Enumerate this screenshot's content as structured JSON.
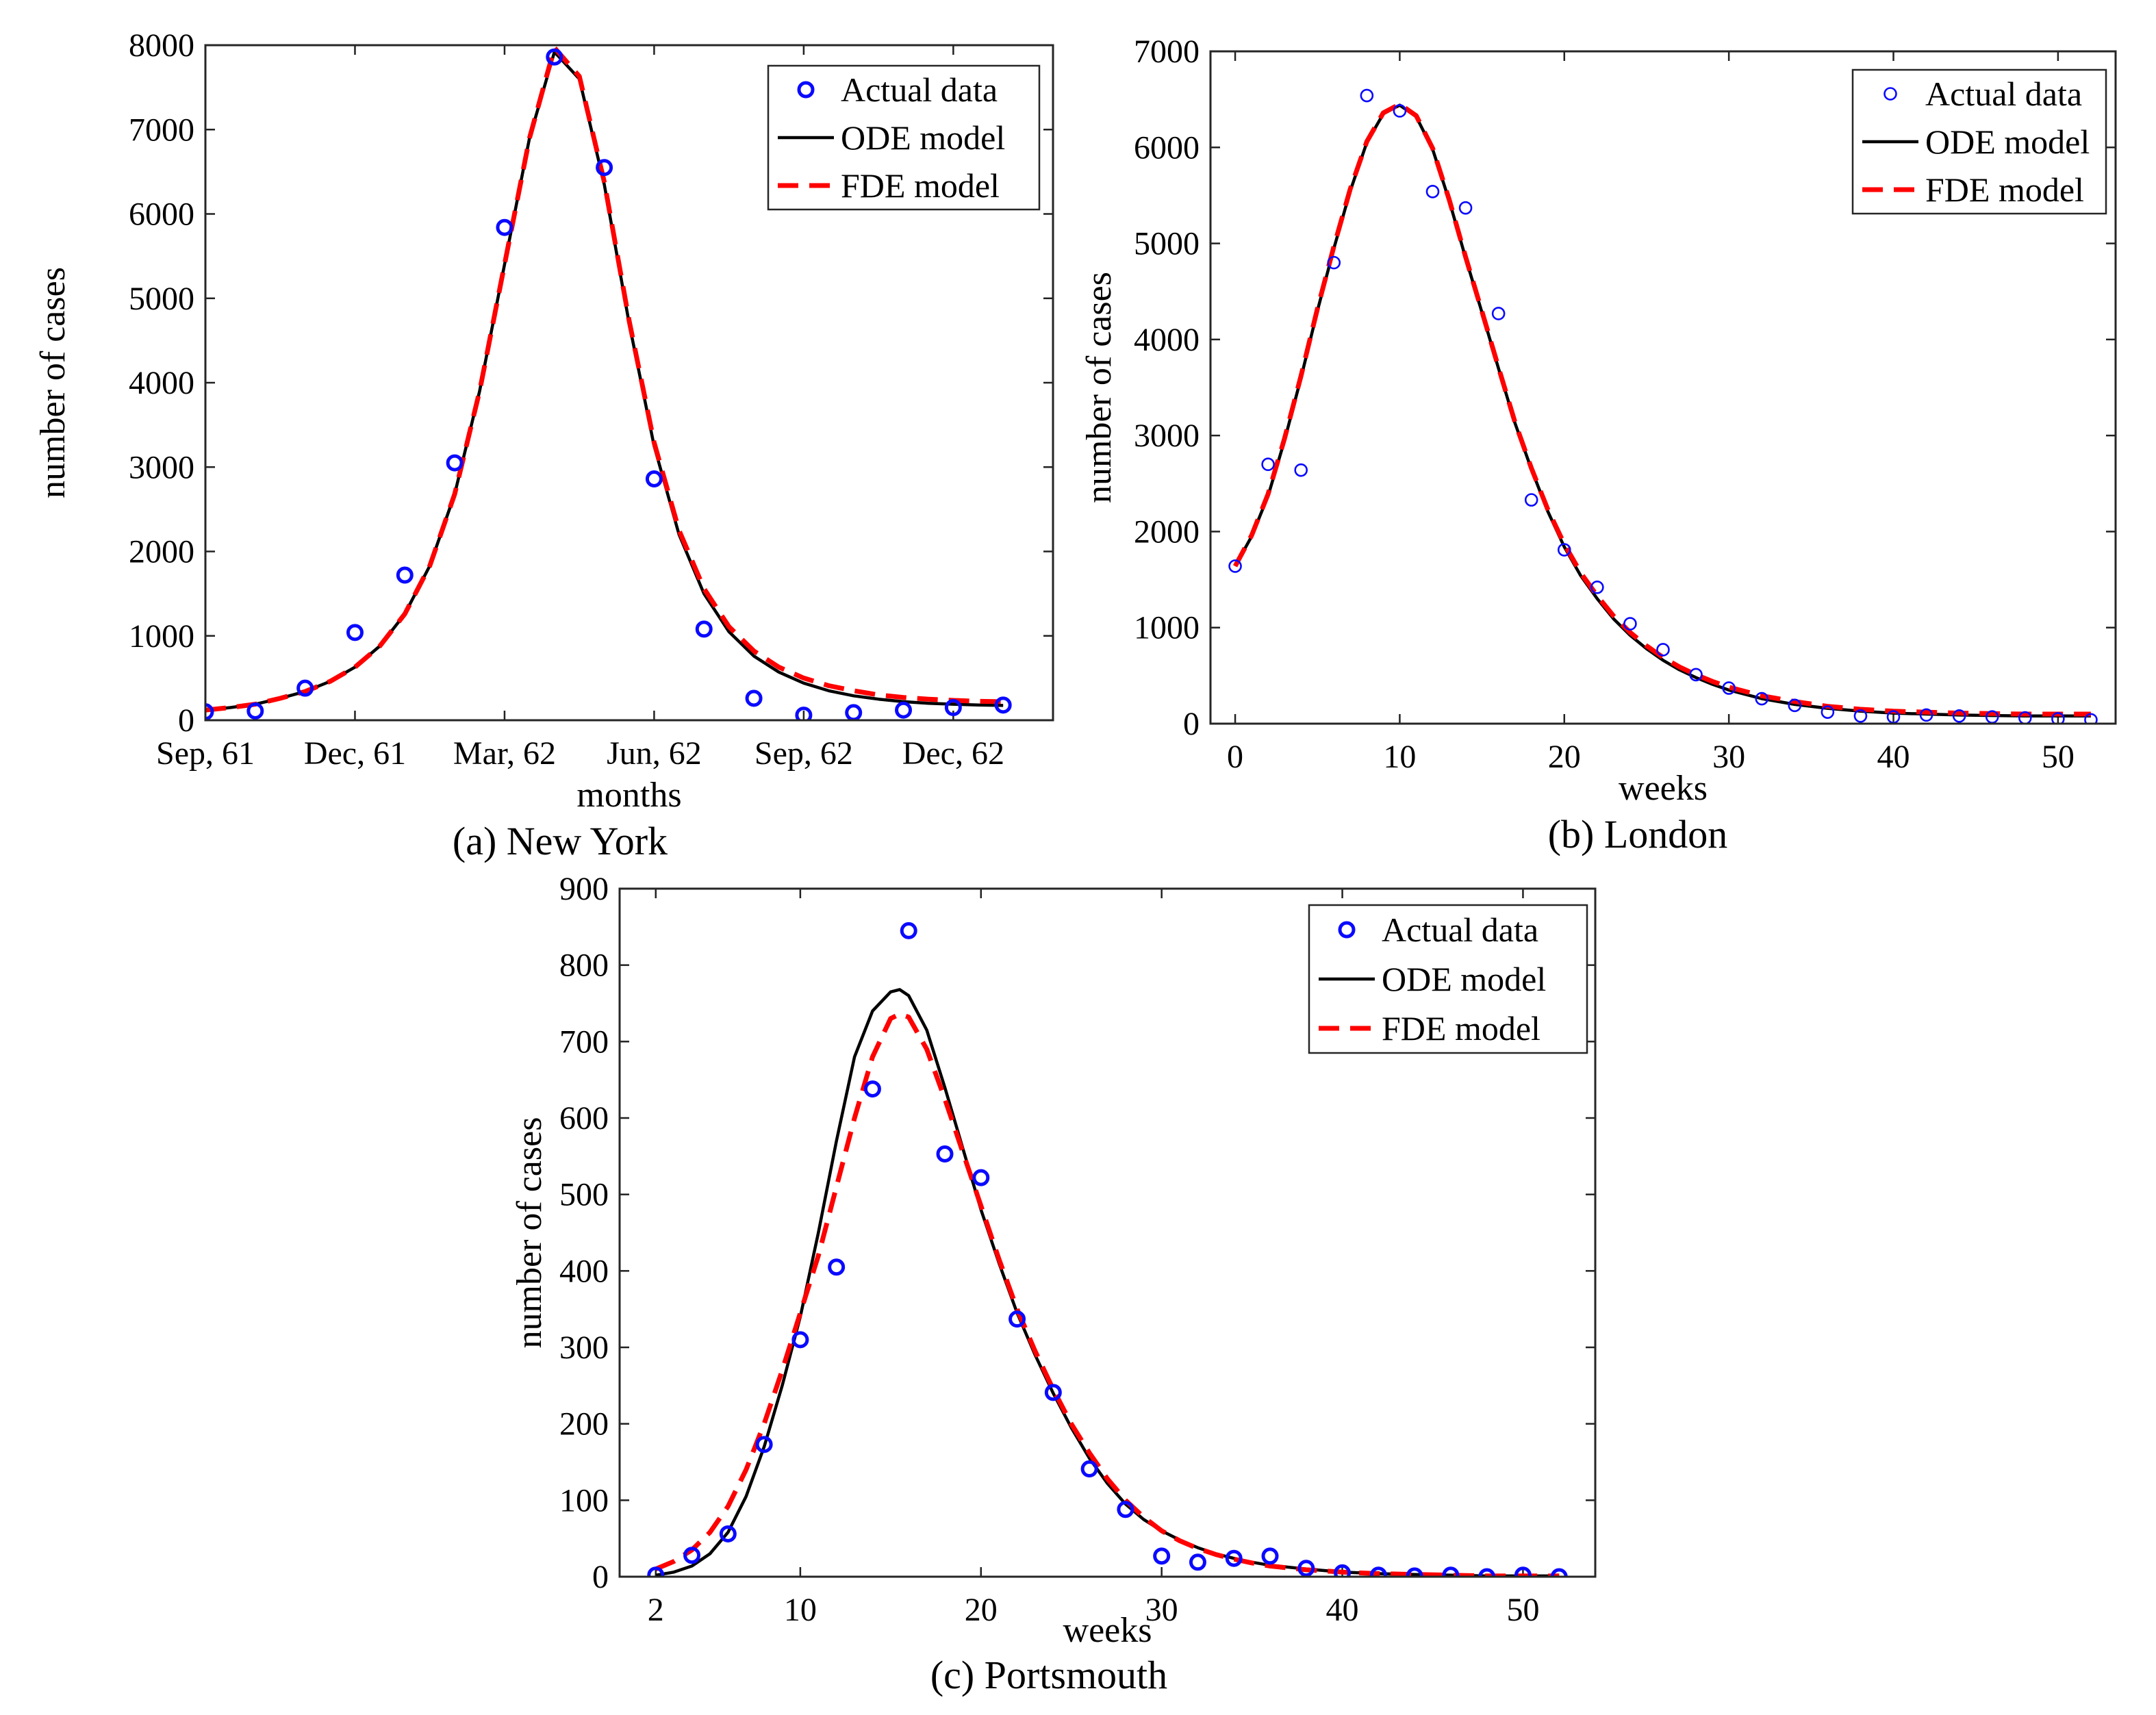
{
  "chart_data": [
    {
      "type": "line",
      "panel": "a",
      "caption": "(a) New York",
      "xlabel": "months",
      "ylabel": "number of cases",
      "xlim": [
        0,
        17
      ],
      "ylim": [
        0,
        8000
      ],
      "xticks": [
        {
          "v": 0,
          "label": "Sep, 61"
        },
        {
          "v": 3,
          "label": "Dec, 61"
        },
        {
          "v": 6,
          "label": "Mar, 62"
        },
        {
          "v": 9,
          "label": "Jun, 62"
        },
        {
          "v": 12,
          "label": "Sep, 62"
        },
        {
          "v": 15,
          "label": "Dec, 62"
        }
      ],
      "yticks": [
        0,
        1000,
        2000,
        3000,
        4000,
        5000,
        6000,
        7000,
        8000
      ],
      "legend": {
        "position": "top-right",
        "entries": [
          "Actual data",
          "ODE model",
          "FDE model"
        ]
      },
      "series": [
        {
          "name": "Actual data",
          "kind": "markers",
          "marker_size": "large",
          "x": [
            0,
            1,
            2,
            3,
            4,
            5,
            6,
            7,
            8,
            9,
            10,
            11,
            12,
            13,
            14,
            15,
            16
          ],
          "y": [
            100,
            110,
            380,
            1040,
            1720,
            3050,
            5840,
            7860,
            6550,
            2860,
            1080,
            260,
            60,
            90,
            120,
            150,
            180
          ]
        },
        {
          "name": "ODE model",
          "kind": "solid",
          "x": [
            0,
            0.5,
            1,
            1.5,
            2,
            2.5,
            3,
            3.5,
            4,
            4.5,
            5,
            5.5,
            6,
            6.5,
            7,
            7.5,
            8,
            8.5,
            9,
            9.5,
            10,
            10.5,
            11,
            11.5,
            12,
            12.5,
            13,
            13.5,
            14,
            14.5,
            15,
            15.5,
            16
          ],
          "y": [
            120,
            150,
            190,
            260,
            340,
            460,
            630,
            880,
            1260,
            1830,
            2680,
            3900,
            5400,
            6900,
            7920,
            7600,
            6350,
            4700,
            3250,
            2200,
            1500,
            1050,
            760,
            570,
            440,
            350,
            290,
            250,
            220,
            200,
            190,
            180,
            175
          ]
        },
        {
          "name": "FDE model",
          "kind": "dashed",
          "x": [
            0,
            0.5,
            1,
            1.5,
            2,
            2.5,
            3,
            3.5,
            4,
            4.5,
            5,
            5.5,
            6,
            6.5,
            7,
            7.5,
            8,
            8.5,
            9,
            9.5,
            10,
            10.5,
            11,
            11.5,
            12,
            12.5,
            13,
            13.5,
            14,
            14.5,
            15,
            15.5,
            16
          ],
          "y": [
            120,
            150,
            190,
            260,
            340,
            460,
            630,
            880,
            1260,
            1830,
            2680,
            3900,
            5400,
            6900,
            7970,
            7630,
            6380,
            4730,
            3290,
            2250,
            1560,
            1110,
            820,
            630,
            500,
            410,
            350,
            300,
            270,
            250,
            235,
            225,
            220
          ]
        }
      ]
    },
    {
      "type": "line",
      "panel": "b",
      "caption": "(b) London",
      "xlabel": "weeks",
      "ylabel": "number of cases",
      "xlim": [
        -1.5,
        53.5
      ],
      "ylim": [
        0,
        7000
      ],
      "xticks": [
        {
          "v": 0,
          "label": "0"
        },
        {
          "v": 10,
          "label": "10"
        },
        {
          "v": 20,
          "label": "20"
        },
        {
          "v": 30,
          "label": "30"
        },
        {
          "v": 40,
          "label": "40"
        },
        {
          "v": 50,
          "label": "50"
        }
      ],
      "yticks": [
        0,
        1000,
        2000,
        3000,
        4000,
        5000,
        6000,
        7000
      ],
      "legend": {
        "position": "top-right",
        "entries": [
          "Actual data",
          "ODE model",
          "FDE model"
        ]
      },
      "series": [
        {
          "name": "Actual data",
          "kind": "markers",
          "marker_size": "small",
          "x": [
            0,
            2,
            4,
            6,
            8,
            10,
            12,
            14,
            16,
            18,
            20,
            22,
            24,
            26,
            28,
            30,
            32,
            34,
            36,
            38,
            40,
            42,
            44,
            46,
            48,
            50,
            52
          ],
          "y": [
            1640,
            2700,
            2640,
            4800,
            6540,
            6380,
            5540,
            5370,
            4270,
            2330,
            1810,
            1420,
            1040,
            770,
            510,
            370,
            260,
            190,
            120,
            80,
            70,
            90,
            80,
            70,
            60,
            50,
            40
          ]
        },
        {
          "name": "ODE model",
          "kind": "solid",
          "x": [
            0,
            1,
            2,
            3,
            4,
            5,
            6,
            7,
            8,
            9,
            10,
            11,
            12,
            13,
            14,
            15,
            16,
            17,
            18,
            19,
            20,
            21,
            22,
            23,
            24,
            25,
            26,
            27,
            28,
            29,
            30,
            32,
            34,
            36,
            38,
            40,
            42,
            44,
            46,
            48,
            50,
            52
          ],
          "y": [
            1640,
            1950,
            2370,
            2950,
            3600,
            4300,
            4950,
            5550,
            6050,
            6350,
            6440,
            6320,
            5980,
            5450,
            4850,
            4280,
            3700,
            3130,
            2650,
            2210,
            1840,
            1540,
            1300,
            1090,
            920,
            780,
            660,
            560,
            480,
            410,
            350,
            260,
            200,
            160,
            130,
            110,
            100,
            90,
            85,
            80,
            80,
            80
          ]
        },
        {
          "name": "FDE model",
          "kind": "dashed",
          "x": [
            0,
            1,
            2,
            3,
            4,
            5,
            6,
            7,
            8,
            9,
            10,
            11,
            12,
            13,
            14,
            15,
            16,
            17,
            18,
            19,
            20,
            21,
            22,
            23,
            24,
            25,
            26,
            27,
            28,
            29,
            30,
            32,
            34,
            36,
            38,
            40,
            42,
            44,
            46,
            48,
            50,
            52
          ],
          "y": [
            1640,
            1960,
            2390,
            2970,
            3620,
            4320,
            4970,
            5570,
            6060,
            6360,
            6450,
            6330,
            5990,
            5460,
            4860,
            4290,
            3710,
            3140,
            2660,
            2230,
            1870,
            1570,
            1330,
            1120,
            950,
            810,
            690,
            590,
            510,
            440,
            380,
            290,
            230,
            180,
            150,
            130,
            120,
            110,
            105,
            100,
            100,
            100
          ]
        }
      ]
    },
    {
      "type": "line",
      "panel": "c",
      "caption": "(c) Portsmouth",
      "xlabel": "weeks",
      "ylabel": "number of cases",
      "xlim": [
        0,
        54
      ],
      "ylim": [
        0,
        900
      ],
      "xticks": [
        {
          "v": 2,
          "label": "2"
        },
        {
          "v": 10,
          "label": "10"
        },
        {
          "v": 20,
          "label": "20"
        },
        {
          "v": 30,
          "label": "30"
        },
        {
          "v": 40,
          "label": "40"
        },
        {
          "v": 50,
          "label": "50"
        }
      ],
      "yticks": [
        0,
        100,
        200,
        300,
        400,
        500,
        600,
        700,
        800,
        900
      ],
      "legend": {
        "position": "top-right",
        "entries": [
          "Actual data",
          "ODE model",
          "FDE model"
        ]
      },
      "series": [
        {
          "name": "Actual data",
          "kind": "markers",
          "marker_size": "large",
          "x": [
            2,
            4,
            6,
            8,
            10,
            12,
            14,
            16,
            18,
            20,
            22,
            24,
            26,
            28,
            30,
            32,
            34,
            36,
            38,
            40,
            42,
            44,
            46,
            48,
            50,
            52
          ],
          "y": [
            2,
            28,
            56,
            173,
            310,
            405,
            638,
            845,
            553,
            522,
            337,
            241,
            141,
            88,
            27,
            19,
            24,
            27,
            11,
            5,
            2,
            1,
            2,
            0,
            2,
            0
          ]
        },
        {
          "name": "ODE model",
          "kind": "solid",
          "x": [
            2,
            3,
            4,
            5,
            6,
            7,
            8,
            9,
            10,
            11,
            12,
            13,
            14,
            15,
            15.5,
            16,
            17,
            18,
            19,
            20,
            21,
            22,
            23,
            24,
            25,
            26,
            27,
            28,
            29,
            30,
            31,
            32,
            33,
            34,
            35,
            36,
            38,
            40,
            42,
            44,
            46,
            48,
            50,
            52
          ],
          "y": [
            2,
            6,
            14,
            30,
            58,
            105,
            170,
            250,
            340,
            450,
            570,
            680,
            740,
            765,
            768,
            760,
            715,
            640,
            560,
            480,
            410,
            345,
            290,
            240,
            195,
            155,
            122,
            95,
            75,
            60,
            48,
            38,
            30,
            24,
            19,
            15,
            10,
            6,
            4,
            3,
            2,
            1,
            1,
            1
          ]
        },
        {
          "name": "FDE model",
          "kind": "dashed",
          "x": [
            2,
            3,
            4,
            5,
            6,
            7,
            8,
            9,
            10,
            11,
            12,
            13,
            14,
            15,
            15.5,
            16,
            17,
            18,
            19,
            20,
            21,
            22,
            23,
            24,
            25,
            26,
            27,
            28,
            29,
            30,
            31,
            32,
            33,
            34,
            35,
            36,
            38,
            40,
            42,
            44,
            46,
            48,
            50,
            52
          ],
          "y": [
            10,
            20,
            35,
            58,
            92,
            140,
            200,
            270,
            345,
            420,
            510,
            600,
            680,
            730,
            736,
            732,
            690,
            625,
            555,
            485,
            415,
            350,
            295,
            245,
            200,
            162,
            128,
            100,
            78,
            60,
            47,
            37,
            29,
            23,
            18,
            14,
            9,
            6,
            4,
            3,
            2,
            1,
            1,
            1
          ]
        }
      ]
    }
  ]
}
